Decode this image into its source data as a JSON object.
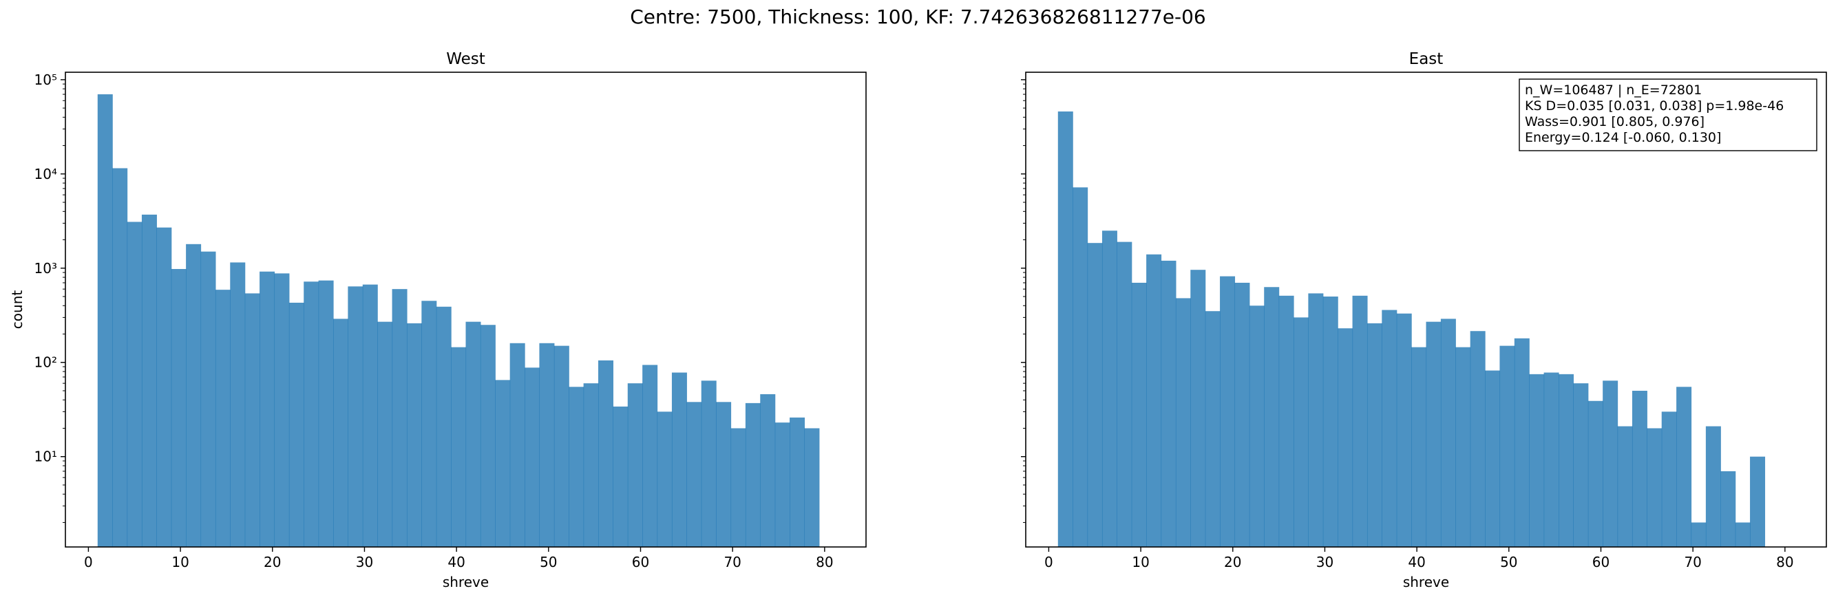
{
  "suptitle": "Centre: 7500, Thickness: 100, KF: 7.742636826811277e-06",
  "chart_data": [
    {
      "type": "bar",
      "subtype": "histogram",
      "title": "West",
      "xlabel": "shreve",
      "ylabel": "count",
      "yscale": "log",
      "xlim": [
        -2.5,
        84.5
      ],
      "ylim": [
        1.1,
        120000
      ],
      "xticks": [
        0,
        10,
        20,
        30,
        40,
        50,
        60,
        70,
        80
      ],
      "yticks": [
        10,
        100,
        1000,
        10000,
        100000
      ],
      "yticklabels": [
        "10¹",
        "10²",
        "10³",
        "10⁴",
        "10⁵"
      ],
      "color": "#1f77b4",
      "bin_start": 1,
      "bin_width": 1.6,
      "values": [
        70000,
        11500,
        3100,
        3700,
        2700,
        980,
        1800,
        1500,
        590,
        1150,
        540,
        920,
        880,
        430,
        720,
        740,
        290,
        640,
        670,
        270,
        600,
        260,
        450,
        390,
        145,
        270,
        250,
        65,
        160,
        88,
        160,
        150,
        55,
        60,
        105,
        34,
        60,
        94,
        30,
        78,
        38,
        64,
        38,
        20,
        37,
        46,
        23,
        26,
        20
      ]
    },
    {
      "type": "bar",
      "subtype": "histogram",
      "title": "East",
      "xlabel": "shreve",
      "ylabel": "",
      "yscale": "log",
      "xlim": [
        -2.5,
        84.5
      ],
      "ylim": [
        1.1,
        120000
      ],
      "xticks": [
        0,
        10,
        20,
        30,
        40,
        50,
        60,
        70,
        80
      ],
      "color": "#1f77b4",
      "bin_start": 1,
      "bin_width": 1.6,
      "values": [
        46000,
        7200,
        1850,
        2500,
        1900,
        700,
        1400,
        1200,
        480,
        960,
        350,
        820,
        700,
        400,
        630,
        510,
        300,
        540,
        500,
        230,
        510,
        260,
        360,
        330,
        145,
        270,
        290,
        145,
        215,
        82,
        150,
        180,
        75,
        78,
        75,
        60,
        39,
        64,
        21,
        50,
        20,
        30,
        55,
        2,
        21,
        7,
        2,
        10
      ],
      "annotation": [
        "n_W=106487 | n_E=72801",
        "KS D=0.035 [0.031, 0.038]  p=1.98e-46",
        "Wass=0.901 [0.805, 0.976]",
        "Energy=0.124 [-0.060, 0.130]"
      ]
    }
  ]
}
